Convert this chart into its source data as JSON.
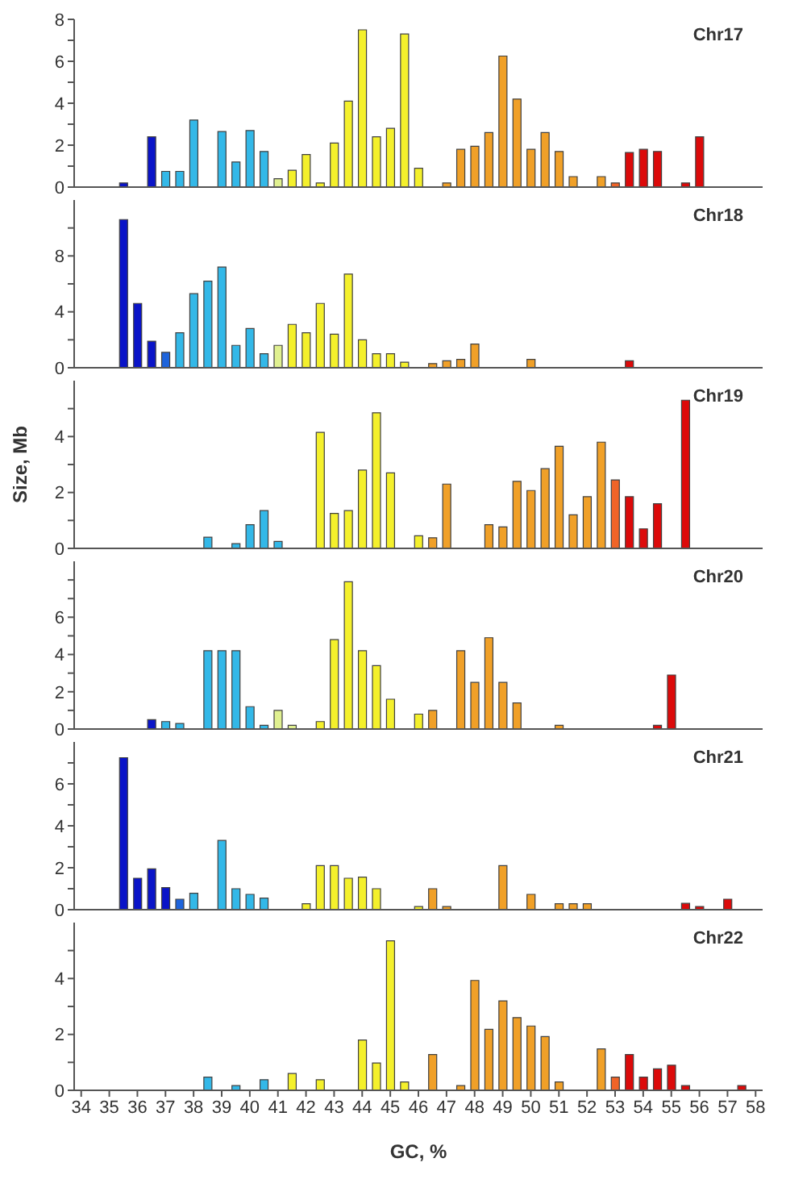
{
  "chart_data": [
    {
      "type": "bar",
      "title": "Chr17",
      "xlim": [
        33.75,
        58.25
      ],
      "xticks": [
        34,
        35,
        36,
        37,
        38,
        39,
        40,
        41,
        42,
        43,
        44,
        45,
        46,
        47,
        48,
        49,
        50,
        51,
        52,
        53,
        54,
        55,
        56,
        57,
        58
      ],
      "ylim": [
        0,
        8
      ],
      "yticks": [
        0,
        {
          "value": 1,
          "label": null
        },
        2,
        {
          "value": 3,
          "label": null
        },
        4,
        {
          "value": 5,
          "label": null
        },
        6,
        {
          "value": 7,
          "label": null
        },
        8
      ],
      "tick_labels": "y",
      "x": [
        35.5,
        36.5,
        37,
        37.5,
        38,
        39,
        39.5,
        40,
        40.5,
        41,
        41.5,
        42,
        42.5,
        43,
        43.5,
        44,
        44.5,
        45,
        45.5,
        46,
        47,
        47.5,
        48,
        48.5,
        49,
        49.5,
        50,
        50.5,
        51,
        51.5,
        52.5,
        53,
        53.5,
        54,
        54.5,
        55.5,
        56
      ],
      "values": [
        0.2,
        2.4,
        0.75,
        0.75,
        3.2,
        2.65,
        1.2,
        2.7,
        1.7,
        0.4,
        0.8,
        1.55,
        0.2,
        2.1,
        4.1,
        7.5,
        2.4,
        2.8,
        7.3,
        0.9,
        0.2,
        1.8,
        1.95,
        2.6,
        6.25,
        4.2,
        1.8,
        2.6,
        1.7,
        0.5,
        0.5,
        0.2,
        1.65,
        1.8,
        1.7,
        0.2,
        2.4
      ],
      "colors": [
        "#0a14c8",
        "#0a14c8",
        "#33b8e8",
        "#33b8e8",
        "#33b8e8",
        "#33b8e8",
        "#33b8e8",
        "#33b8e8",
        "#33b8e8",
        "#e0f090",
        "#f4f02c",
        "#f4f02c",
        "#f4f02c",
        "#f4f02c",
        "#f4f02c",
        "#f4f02c",
        "#f4f02c",
        "#f4f02c",
        "#f4f02c",
        "#f4f02c",
        "#f0a028",
        "#f0a028",
        "#f0a028",
        "#f0a028",
        "#f0a028",
        "#f0a028",
        "#f0a028",
        "#f0a028",
        "#f0a028",
        "#f0a028",
        "#f0a028",
        "#f06428",
        "#dc0a0a",
        "#dc0a0a",
        "#dc0a0a",
        "#dc0a0a",
        "#dc0a0a"
      ]
    },
    {
      "type": "bar",
      "title": "Chr18",
      "xlim": [
        33.75,
        58.25
      ],
      "xticks": [
        34,
        35,
        36,
        37,
        38,
        39,
        40,
        41,
        42,
        43,
        44,
        45,
        46,
        47,
        48,
        49,
        50,
        51,
        52,
        53,
        54,
        55,
        56,
        57,
        58
      ],
      "ylim": [
        0,
        12
      ],
      "yticks": [
        0,
        {
          "value": 2,
          "label": null
        },
        4,
        {
          "value": 6,
          "label": null
        },
        8,
        {
          "value": 10,
          "label": null
        }
      ],
      "tick_labels": "y",
      "x": [
        35.5,
        36,
        36.5,
        37,
        37.5,
        38,
        38.5,
        39,
        39.5,
        40,
        40.5,
        41,
        41.5,
        42,
        42.5,
        43,
        43.5,
        44,
        44.5,
        45,
        45.5,
        46.5,
        47,
        47.5,
        48,
        50,
        53.5
      ],
      "values": [
        10.6,
        4.6,
        1.9,
        1.1,
        2.5,
        5.3,
        6.2,
        7.2,
        1.6,
        2.8,
        1.0,
        1.6,
        3.1,
        2.5,
        4.6,
        2.4,
        6.7,
        2.0,
        1.0,
        1.0,
        0.4,
        0.3,
        0.5,
        0.6,
        1.7,
        0.6,
        0.5
      ],
      "colors": [
        "#0a14c8",
        "#0a14c8",
        "#0a14c8",
        "#1e64dc",
        "#33b8e8",
        "#33b8e8",
        "#33b8e8",
        "#33b8e8",
        "#33b8e8",
        "#33b8e8",
        "#33b8e8",
        "#e0f090",
        "#f4f02c",
        "#f4f02c",
        "#f4f02c",
        "#f4f02c",
        "#f4f02c",
        "#f4f02c",
        "#f4f02c",
        "#f4f02c",
        "#f4f02c",
        "#f0a028",
        "#f0a028",
        "#f0a028",
        "#f0a028",
        "#f0a028",
        "#dc0a0a"
      ]
    },
    {
      "type": "bar",
      "title": "Chr19",
      "ylabel": "Size, Mb",
      "xlim": [
        33.75,
        58.25
      ],
      "xticks": [
        34,
        35,
        36,
        37,
        38,
        39,
        40,
        41,
        42,
        43,
        44,
        45,
        46,
        47,
        48,
        49,
        50,
        51,
        52,
        53,
        54,
        55,
        56,
        57,
        58
      ],
      "ylim": [
        0,
        6
      ],
      "yticks": [
        0,
        {
          "value": 1,
          "label": null
        },
        2,
        {
          "value": 3,
          "label": null
        },
        4,
        {
          "value": 5,
          "label": null
        }
      ],
      "tick_labels": "y",
      "x": [
        38.5,
        39.5,
        40,
        40.5,
        41,
        42.5,
        43,
        43.5,
        44,
        44.5,
        45,
        46,
        46.5,
        47,
        48.5,
        49,
        49.5,
        50,
        50.5,
        51,
        51.5,
        52,
        52.5,
        53,
        53.5,
        54,
        54.5,
        55.5
      ],
      "values": [
        0.4,
        0.17,
        0.85,
        1.35,
        0.25,
        4.15,
        1.25,
        1.35,
        2.8,
        4.85,
        2.7,
        0.45,
        0.38,
        2.3,
        0.85,
        0.77,
        2.4,
        2.07,
        2.85,
        3.65,
        1.2,
        1.85,
        3.8,
        2.45,
        1.85,
        0.7,
        1.6,
        5.3
      ],
      "colors": [
        "#33b8e8",
        "#33b8e8",
        "#33b8e8",
        "#33b8e8",
        "#33b8e8",
        "#f4f02c",
        "#f4f02c",
        "#f4f02c",
        "#f4f02c",
        "#f4f02c",
        "#f4f02c",
        "#f4f02c",
        "#f0a028",
        "#f0a028",
        "#f0a028",
        "#f0a028",
        "#f0a028",
        "#f0a028",
        "#f0a028",
        "#f0a028",
        "#f0a028",
        "#f0a028",
        "#f0a028",
        "#f06428",
        "#dc0a0a",
        "#dc0a0a",
        "#dc0a0a",
        "#dc0a0a"
      ]
    },
    {
      "type": "bar",
      "title": "Chr20",
      "xlim": [
        33.75,
        58.25
      ],
      "xticks": [
        34,
        35,
        36,
        37,
        38,
        39,
        40,
        41,
        42,
        43,
        44,
        45,
        46,
        47,
        48,
        49,
        50,
        51,
        52,
        53,
        54,
        55,
        56,
        57,
        58
      ],
      "ylim": [
        0,
        9
      ],
      "yticks": [
        0,
        {
          "value": 1,
          "label": null
        },
        2,
        {
          "value": 3,
          "label": null
        },
        4,
        {
          "value": 5,
          "label": null
        },
        6,
        {
          "value": 7,
          "label": null
        },
        {
          "value": 8,
          "label": null
        }
      ],
      "tick_labels": "y",
      "x": [
        36.5,
        37,
        37.5,
        38.5,
        39,
        39.5,
        40,
        40.5,
        41,
        41.5,
        42.5,
        43,
        43.5,
        44,
        44.5,
        45,
        46,
        46.5,
        47.5,
        48,
        48.5,
        49,
        49.5,
        51,
        54.5,
        55
      ],
      "values": [
        0.5,
        0.4,
        0.3,
        4.2,
        4.2,
        4.2,
        1.2,
        0.2,
        1.0,
        0.2,
        0.4,
        4.8,
        7.9,
        4.2,
        3.4,
        1.6,
        0.8,
        1.0,
        4.2,
        2.5,
        4.9,
        2.5,
        1.4,
        0.2,
        0.2,
        2.9
      ],
      "colors": [
        "#0a14c8",
        "#33b8e8",
        "#33b8e8",
        "#33b8e8",
        "#33b8e8",
        "#33b8e8",
        "#33b8e8",
        "#33b8e8",
        "#e0f090",
        "#e0f090",
        "#f4f02c",
        "#f4f02c",
        "#f4f02c",
        "#f4f02c",
        "#f4f02c",
        "#f4f02c",
        "#f4f02c",
        "#f0a028",
        "#f0a028",
        "#f0a028",
        "#f0a028",
        "#f0a028",
        "#f0a028",
        "#f0a028",
        "#dc0a0a",
        "#dc0a0a"
      ]
    },
    {
      "type": "bar",
      "title": "Chr21",
      "xlim": [
        33.75,
        58.25
      ],
      "xticks": [
        34,
        35,
        36,
        37,
        38,
        39,
        40,
        41,
        42,
        43,
        44,
        45,
        46,
        47,
        48,
        49,
        50,
        51,
        52,
        53,
        54,
        55,
        56,
        57,
        58
      ],
      "ylim": [
        0,
        8
      ],
      "yticks": [
        0,
        {
          "value": 1,
          "label": null
        },
        2,
        {
          "value": 3,
          "label": null
        },
        4,
        {
          "value": 5,
          "label": null
        },
        6,
        {
          "value": 7,
          "label": null
        }
      ],
      "tick_labels": "y",
      "x": [
        35.5,
        36,
        36.5,
        37,
        37.5,
        38,
        39,
        39.5,
        40,
        40.5,
        42,
        42.5,
        43,
        43.5,
        44,
        44.5,
        46,
        46.5,
        47,
        49,
        50,
        51,
        51.5,
        52,
        55.5,
        56,
        57
      ],
      "values": [
        7.25,
        1.5,
        1.95,
        1.05,
        0.5,
        0.78,
        3.3,
        1.0,
        0.73,
        0.55,
        0.28,
        2.1,
        2.1,
        1.5,
        1.55,
        1.0,
        0.15,
        1.0,
        0.15,
        2.1,
        0.73,
        0.28,
        0.28,
        0.28,
        0.3,
        0.15,
        0.5
      ],
      "colors": [
        "#0a14c8",
        "#0a14c8",
        "#0a14c8",
        "#0a14c8",
        "#1e64dc",
        "#33b8e8",
        "#33b8e8",
        "#33b8e8",
        "#33b8e8",
        "#33b8e8",
        "#f4f02c",
        "#f4f02c",
        "#f4f02c",
        "#f4f02c",
        "#f4f02c",
        "#f4f02c",
        "#f4f02c",
        "#f0a028",
        "#f0a028",
        "#f0a028",
        "#f0a028",
        "#f0a028",
        "#f0a028",
        "#f0a028",
        "#dc0a0a",
        "#dc0a0a",
        "#dc0a0a"
      ]
    },
    {
      "type": "bar",
      "title": "Chr22",
      "xlabel": "GC, %",
      "xlim": [
        33.75,
        58.25
      ],
      "xticks": [
        34,
        35,
        36,
        37,
        38,
        39,
        40,
        41,
        42,
        43,
        44,
        45,
        46,
        47,
        48,
        49,
        50,
        51,
        52,
        53,
        54,
        55,
        56,
        57,
        58
      ],
      "ylim": [
        0,
        6
      ],
      "yticks": [
        0,
        {
          "value": 1,
          "label": null
        },
        2,
        {
          "value": 3,
          "label": null
        },
        4,
        {
          "value": 5,
          "label": null
        }
      ],
      "x": [
        38.5,
        39.5,
        40.5,
        41.5,
        42.5,
        44,
        44.5,
        45,
        45.5,
        46.5,
        47.5,
        48,
        48.5,
        49,
        49.5,
        50,
        50.5,
        51,
        52.5,
        53,
        53.5,
        54,
        54.5,
        55,
        55.5,
        57.5
      ],
      "values": [
        0.47,
        0.17,
        0.38,
        0.6,
        0.38,
        1.8,
        0.98,
        5.35,
        0.3,
        1.28,
        0.17,
        3.93,
        2.18,
        3.2,
        2.6,
        2.3,
        1.92,
        0.3,
        1.48,
        0.47,
        1.28,
        0.47,
        0.77,
        0.9,
        0.17,
        0.17
      ],
      "colors": [
        "#33b8e8",
        "#33b8e8",
        "#33b8e8",
        "#f4f02c",
        "#f4f02c",
        "#f4f02c",
        "#f4f02c",
        "#f4f02c",
        "#f4f02c",
        "#f0a028",
        "#f0a028",
        "#f0a028",
        "#f0a028",
        "#f0a028",
        "#f0a028",
        "#f0a028",
        "#f0a028",
        "#f0a028",
        "#f0a028",
        "#f06428",
        "#dc0a0a",
        "#dc0a0a",
        "#dc0a0a",
        "#dc0a0a",
        "#dc0a0a",
        "#dc0a0a"
      ]
    }
  ]
}
